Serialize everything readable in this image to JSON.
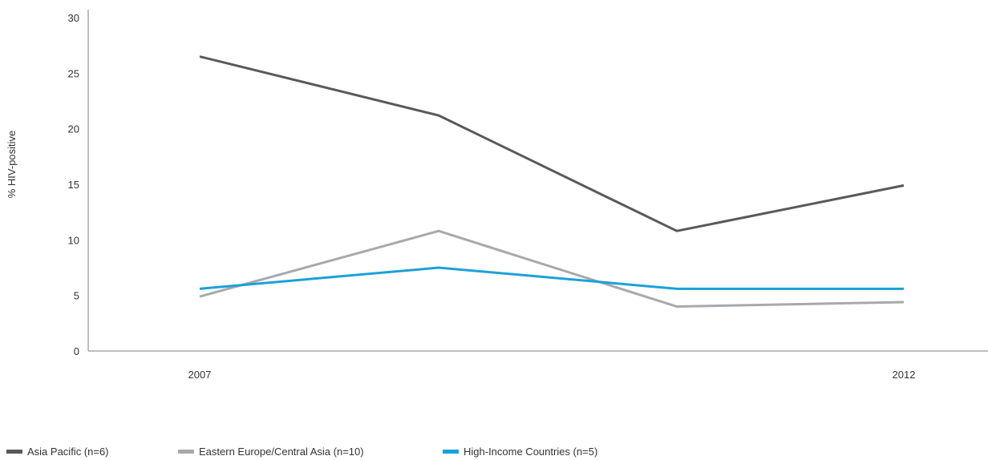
{
  "chart_data": {
    "type": "line",
    "title": "",
    "xlabel": "",
    "ylabel": "% HIV-positive",
    "x": [
      "2007",
      "",
      "",
      "2012"
    ],
    "x_tick_labels": [
      "2007",
      "2012"
    ],
    "ylim": [
      0,
      30
    ],
    "y_ticks": [
      "0",
      "5",
      "10",
      "15",
      "20",
      "25",
      "30"
    ],
    "grid": false,
    "legend_position": "bottom-left",
    "series": [
      {
        "name": "Asia Pacific (n=6)",
        "color": "#58595b",
        "values": [
          26.5,
          21.2,
          10.8,
          14.9
        ]
      },
      {
        "name": "Eastern Europe/Central Asia (n=10)",
        "color": "#a7a9ac",
        "values": [
          4.9,
          10.8,
          4.0,
          4.4
        ]
      },
      {
        "name": "High-Income Countries (n=5)",
        "color": "#1ba1d8",
        "values": [
          5.6,
          7.5,
          5.6,
          5.6
        ]
      }
    ]
  }
}
